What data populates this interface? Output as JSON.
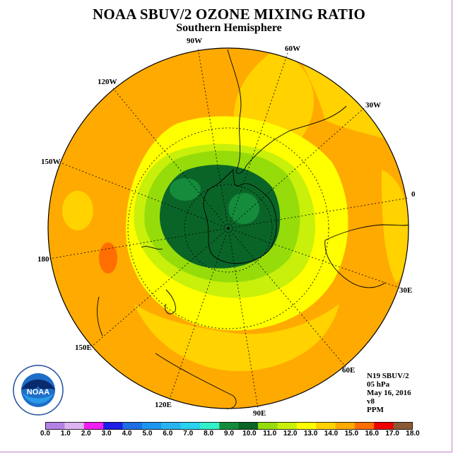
{
  "title": "NOAA SBUV/2 OZONE MIXING RATIO",
  "subtitle": "Southern Hemisphere",
  "longitude_labels": [
    "90W",
    "60W",
    "30W",
    "0",
    "30E",
    "60E",
    "90E",
    "120E",
    "150E",
    "180",
    "150W",
    "120W"
  ],
  "info": {
    "satellite": "N19 SBUV/2",
    "pressure_level": "05 hPa",
    "date": "May 16, 2016",
    "version": "v8",
    "units": "PPM"
  },
  "logo": {
    "text": "NOAA",
    "ring_text": "NATIONAL OCEANIC AND ATMOSPHERIC ADMINISTRATION",
    "ring_text_bottom": "U.S. DEPARTMENT OF COMMERCE"
  },
  "colorbar": {
    "tick_labels": [
      "0.0",
      "1.0",
      "2.0",
      "3.0",
      "4.0",
      "5.0",
      "6.0",
      "7.0",
      "8.0",
      "9.0",
      "10.0",
      "11.0",
      "12.0",
      "13.0",
      "14.0",
      "15.0",
      "16.0",
      "17.0",
      "18.0"
    ],
    "colors": [
      "#b482e6",
      "#dcb4f0",
      "#f01ef0",
      "#1e1ee6",
      "#1e6ee6",
      "#1e96f0",
      "#28b4f0",
      "#28d2f0",
      "#32f0c8",
      "#148c3c",
      "#0a6428",
      "#96dc0a",
      "#c8f00a",
      "#ffff00",
      "#ffd200",
      "#ffaa00",
      "#ff6e00",
      "#f00000",
      "#8c5a32"
    ]
  },
  "map_colors": {
    "ocean_background": "#f5a623",
    "level_15": "#ffaa00",
    "level_14": "#ffd200",
    "level_13": "#ffff00",
    "level_12": "#c8f00a",
    "level_11": "#96dc0a",
    "level_10": "#0a6428",
    "level_9": "#148c3c",
    "level_16": "#ff6e00"
  }
}
